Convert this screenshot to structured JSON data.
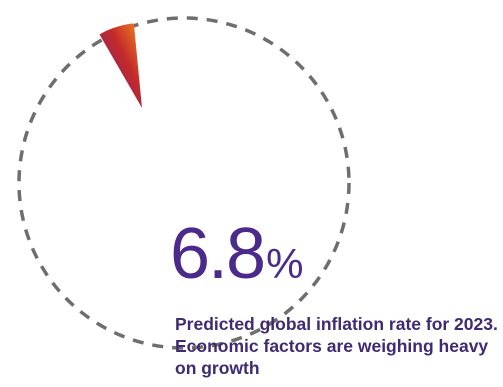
{
  "chart_data": {
    "type": "pie",
    "slices": [
      {
        "label": "Predicted global inflation rate",
        "value": 6.8
      }
    ],
    "total": 100,
    "value_text": "6.8",
    "unit": "%",
    "caption": "Predicted global inflation rate for 2023. Economic factors are weighing heavy on growth",
    "colors": {
      "gradient_start": "#6b1c8a",
      "gradient_mid": "#c42a2a",
      "gradient_end": "#f28b20",
      "dashed_ring": "#555555",
      "text": "#4b2a8c"
    }
  }
}
